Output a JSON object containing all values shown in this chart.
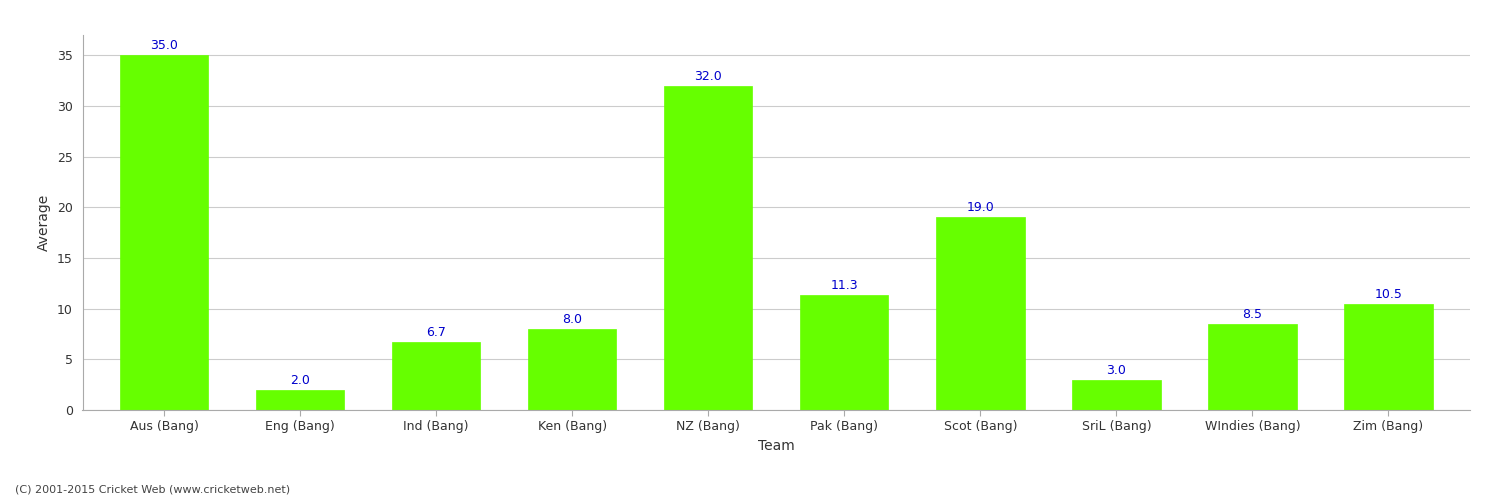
{
  "categories": [
    "Aus (Bang)",
    "Eng (Bang)",
    "Ind (Bang)",
    "Ken (Bang)",
    "NZ (Bang)",
    "Pak (Bang)",
    "Scot (Bang)",
    "SriL (Bang)",
    "WIndies (Bang)",
    "Zim (Bang)"
  ],
  "values": [
    35.0,
    2.0,
    6.7,
    8.0,
    32.0,
    11.3,
    19.0,
    3.0,
    8.5,
    10.5
  ],
  "bar_color": "#66ff00",
  "bar_edge_color": "#66ff00",
  "xlabel": "Team",
  "ylabel": "Average",
  "ylim": [
    0,
    37
  ],
  "yticks": [
    0,
    5,
    10,
    15,
    20,
    25,
    30,
    35
  ],
  "label_color": "#0000cc",
  "label_fontsize": 9,
  "axis_label_fontsize": 10,
  "tick_label_fontsize": 9,
  "background_color": "#ffffff",
  "grid_color": "#cccccc",
  "footer_text": "(C) 2001-2015 Cricket Web (www.cricketweb.net)",
  "footer_fontsize": 8,
  "footer_color": "#444444"
}
